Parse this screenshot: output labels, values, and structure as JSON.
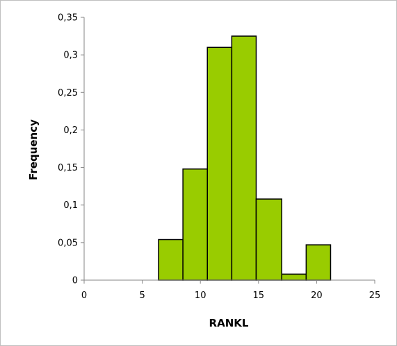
{
  "chart_data": {
    "type": "bar",
    "subtype": "histogram",
    "title": "",
    "xlabel": "RANKL",
    "ylabel": "Frequency",
    "xlim": [
      0,
      25
    ],
    "ylim": [
      0,
      0.35
    ],
    "x_ticks": [
      "0",
      "5",
      "10",
      "15",
      "20",
      "25"
    ],
    "y_ticks": [
      "0",
      "0,05",
      "0,1",
      "0,15",
      "0,2",
      "0,25",
      "0,3",
      "0,35"
    ],
    "bins": [
      {
        "x0": 6.4,
        "x1": 8.5,
        "value": 0.054
      },
      {
        "x0": 8.5,
        "x1": 10.6,
        "value": 0.148
      },
      {
        "x0": 10.6,
        "x1": 12.7,
        "value": 0.31
      },
      {
        "x0": 12.7,
        "x1": 14.8,
        "value": 0.325
      },
      {
        "x0": 14.8,
        "x1": 17.0,
        "value": 0.108
      },
      {
        "x0": 17.0,
        "x1": 19.1,
        "value": 0.008
      },
      {
        "x0": 19.1,
        "x1": 21.2,
        "value": 0.047
      }
    ],
    "grid": false,
    "legend": "none",
    "bar_color": "#99cc00",
    "bar_edge_color": "#000000"
  }
}
